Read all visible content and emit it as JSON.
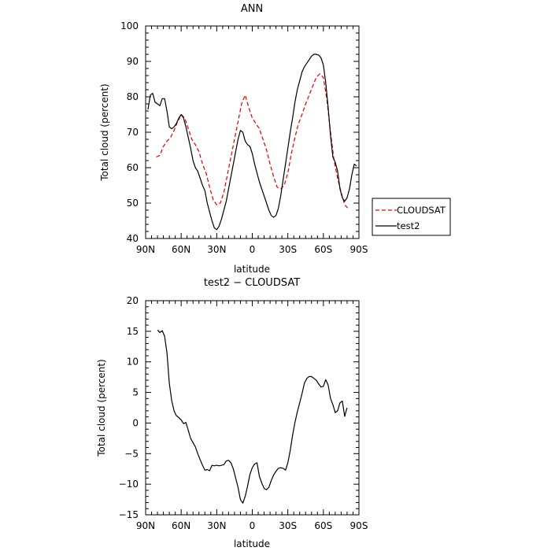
{
  "chart_data": [
    {
      "type": "line",
      "title": "ANN",
      "xlabel": "latitude",
      "ylabel": "Total cloud (percent)",
      "xlim": [
        90,
        -90
      ],
      "ylim": [
        40,
        100
      ],
      "xticks": [
        90,
        60,
        30,
        0,
        -30,
        -60,
        -90
      ],
      "xtick_labels": [
        "90N",
        "60N",
        "30N",
        "0",
        "30S",
        "60S",
        "90S"
      ],
      "yticks": [
        40,
        50,
        60,
        70,
        80,
        90,
        100
      ],
      "ytick_labels": [
        "40",
        "50",
        "60",
        "70",
        "80",
        "90",
        "100"
      ],
      "x_minor_step": 5,
      "y_minor_step": 2,
      "legend_position": "right",
      "series": [
        {
          "name": "CLOUDSAT",
          "color": "#e00000",
          "dash": "dashed",
          "x": [
            81,
            78,
            75,
            72,
            69,
            66,
            63,
            60,
            57,
            54,
            51,
            48,
            45,
            42,
            39,
            36,
            33,
            30,
            27,
            24,
            21,
            18,
            15,
            12,
            9,
            6,
            3,
            0,
            -3,
            -6,
            -9,
            -12,
            -15,
            -18,
            -21,
            -24,
            -27,
            -30,
            -33,
            -36,
            -39,
            -42,
            -45,
            -48,
            -51,
            -54,
            -57,
            -60,
            -63,
            -66,
            -69,
            -72,
            -75,
            -78,
            -81
          ],
          "y": [
            63,
            63.5,
            66,
            67.5,
            68.5,
            70.5,
            73,
            75,
            74,
            71,
            68,
            66.5,
            64.5,
            61,
            58.5,
            54.5,
            51,
            49.5,
            50,
            53,
            58,
            63,
            68,
            73,
            78,
            80.5,
            77,
            74,
            72.5,
            71,
            68,
            65,
            61,
            57.5,
            54.5,
            54,
            55,
            58.5,
            64,
            68.5,
            72.5,
            75,
            78,
            80.5,
            83,
            85.5,
            86.5,
            85.5,
            79,
            70,
            62,
            57,
            53,
            49.5,
            48.5
          ]
        },
        {
          "name": "test2",
          "color": "#000000",
          "dash": "solid",
          "x": [
            88,
            86,
            84,
            82,
            80,
            78,
            76,
            74,
            72,
            70,
            68,
            66,
            64,
            62,
            60,
            58,
            56,
            54,
            52,
            50,
            48,
            46,
            44,
            42,
            40,
            38,
            36,
            34,
            32,
            30,
            28,
            26,
            24,
            22,
            20,
            18,
            16,
            14,
            12,
            10,
            8,
            6,
            4,
            2,
            0,
            -2,
            -4,
            -6,
            -8,
            -10,
            -12,
            -14,
            -16,
            -18,
            -20,
            -22,
            -24,
            -26,
            -28,
            -30,
            -32,
            -34,
            -36,
            -38,
            -40,
            -42,
            -44,
            -46,
            -48,
            -50,
            -52,
            -54,
            -56,
            -58,
            -60,
            -62,
            -64,
            -66,
            -68,
            -70,
            -72,
            -74,
            -76,
            -78,
            -80,
            -82,
            -84,
            -86,
            -88
          ],
          "y": [
            76.5,
            80.5,
            81,
            78.5,
            78,
            77.5,
            79.5,
            79.5,
            76,
            71.5,
            71,
            71.5,
            72.5,
            74,
            75,
            74,
            71.5,
            68.5,
            65.5,
            62,
            60,
            59,
            57,
            55,
            53.5,
            50,
            47.5,
            45,
            43,
            42.5,
            43.5,
            45.5,
            48,
            50.5,
            54,
            57.5,
            61,
            64.5,
            68,
            70.5,
            70,
            67.5,
            66.5,
            66,
            64,
            61,
            58.5,
            56,
            54,
            52,
            50,
            48,
            46.5,
            46,
            46.5,
            48.5,
            52,
            56.5,
            61,
            65.5,
            70,
            74,
            78.5,
            82,
            84.5,
            87,
            88.5,
            89.5,
            90.5,
            91.5,
            92,
            92,
            91.8,
            91,
            89,
            84,
            77,
            69,
            63,
            61.5,
            59,
            54,
            51.5,
            50.5,
            51.5,
            54,
            58,
            61,
            60.5
          ]
        }
      ]
    },
    {
      "type": "line",
      "title": "test2 − CLOUDSAT",
      "xlabel": "latitude",
      "ylabel": "Total cloud (percent)",
      "xlim": [
        90,
        -90
      ],
      "ylim": [
        -15,
        20
      ],
      "xticks": [
        90,
        60,
        30,
        0,
        -30,
        -60,
        -90
      ],
      "xtick_labels": [
        "90N",
        "60N",
        "30N",
        "0",
        "30S",
        "60S",
        "90S"
      ],
      "yticks": [
        -15,
        -10,
        -5,
        0,
        5,
        10,
        15,
        20
      ],
      "ytick_labels": [
        "−15",
        "−10",
        "−5",
        "0",
        "5",
        "10",
        "15",
        "20"
      ],
      "x_minor_step": 5,
      "y_minor_step": 1,
      "series": [
        {
          "color": "#000000",
          "dash": "solid",
          "x": [
            80,
            78,
            76,
            74,
            72,
            70,
            68,
            66,
            64,
            62,
            60,
            58,
            56,
            54,
            52,
            50,
            48,
            46,
            44,
            42,
            40,
            38,
            36,
            34,
            32,
            30,
            28,
            26,
            24,
            22,
            20,
            18,
            16,
            14,
            12,
            10,
            8,
            6,
            4,
            2,
            0,
            -2,
            -4,
            -6,
            -8,
            -10,
            -12,
            -14,
            -16,
            -18,
            -20,
            -22,
            -24,
            -26,
            -28,
            -30,
            -32,
            -34,
            -36,
            -38,
            -40,
            -42,
            -44,
            -46,
            -48,
            -50,
            -52,
            -54,
            -56,
            -58,
            -60,
            -62,
            -64,
            -66,
            -68,
            -70,
            -72,
            -74,
            -76,
            -78,
            -80
          ],
          "y": [
            15.2,
            14.8,
            15.1,
            14.2,
            11.5,
            6.5,
            3.7,
            2.0,
            1.2,
            0.9,
            0.5,
            -0.1,
            0.1,
            -1.2,
            -2.5,
            -3.2,
            -3.9,
            -5.0,
            -6.0,
            -6.9,
            -7.7,
            -7.6,
            -7.8,
            -6.9,
            -7.0,
            -6.9,
            -7.0,
            -6.9,
            -6.8,
            -6.2,
            -6.1,
            -6.5,
            -7.5,
            -9.0,
            -10.5,
            -12.5,
            -13.1,
            -12.0,
            -10.3,
            -8.4,
            -7.3,
            -6.7,
            -6.5,
            -8.7,
            -9.8,
            -10.7,
            -10.9,
            -10.5,
            -9.4,
            -8.5,
            -7.9,
            -7.4,
            -7.3,
            -7.4,
            -7.7,
            -6.5,
            -4.5,
            -2.0,
            0.1,
            1.8,
            3.3,
            4.8,
            6.5,
            7.3,
            7.6,
            7.6,
            7.3,
            7.0,
            6.4,
            5.9,
            6.0,
            7.1,
            6.2,
            4.0,
            3.0,
            1.7,
            2.0,
            3.3,
            3.6,
            1.1,
            2.5
          ]
        }
      ]
    }
  ]
}
